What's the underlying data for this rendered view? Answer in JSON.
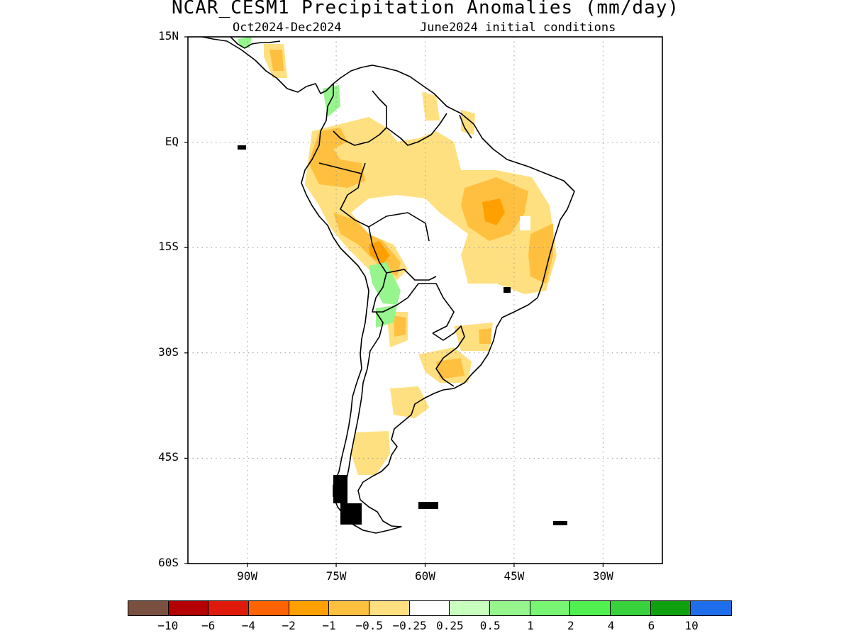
{
  "title": "NCAR_CESM1 Precipitation Anomalies (mm/day)",
  "subtitle_left": "Oct2024-Dec2024",
  "subtitle_right": "June2024 initial conditions",
  "lat_labels": [
    {
      "text": "15N",
      "lat": 15
    },
    {
      "text": "EQ",
      "lat": 0
    },
    {
      "text": "15S",
      "lat": -15
    },
    {
      "text": "30S",
      "lat": -30
    },
    {
      "text": "45S",
      "lat": -45
    },
    {
      "text": "60S",
      "lat": -60
    }
  ],
  "lon_labels": [
    {
      "text": "90W",
      "lon": -90
    },
    {
      "text": "75W",
      "lon": -75
    },
    {
      "text": "60W",
      "lon": -60
    },
    {
      "text": "45W",
      "lon": -45
    },
    {
      "text": "30W",
      "lon": -30
    }
  ],
  "map_extent": {
    "lon_min": -100,
    "lon_max": -20,
    "lat_min": -60,
    "lat_max": 15
  },
  "grid": "dotted",
  "colorbar": {
    "colors": [
      "#7a5040",
      "#b40000",
      "#e01a0a",
      "#ff6400",
      "#ffa000",
      "#ffc040",
      "#ffe080",
      "#ffffff",
      "#c8ffbe",
      "#96f58c",
      "#78f573",
      "#50f050",
      "#37d23c",
      "#0fa00f",
      "#1e6eeb"
    ],
    "labels": [
      "−10",
      "−6",
      "−4",
      "−2",
      "−1",
      "−0.5",
      "−0.25",
      "0.25",
      "0.5",
      "1",
      "2",
      "4",
      "6",
      "10"
    ]
  },
  "colors": {
    "land_outline": "#000000",
    "grid": "#9a9a9a"
  }
}
